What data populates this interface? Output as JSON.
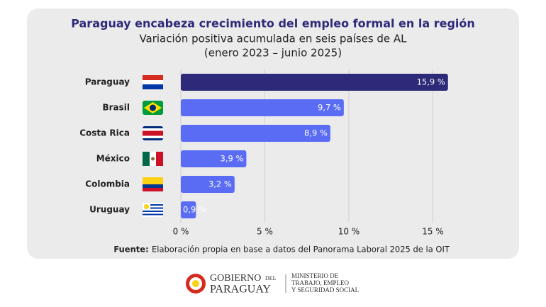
{
  "chart_data": {
    "type": "bar",
    "orientation": "horizontal",
    "title": "Paraguay encabeza crecimiento del empleo formal en la región",
    "subtitle": [
      "Variación positiva acumulada en seis países de AL",
      "(enero 2023 – junio 2025)"
    ],
    "categories": [
      "Paraguay",
      "Brasil",
      "Costa Rica",
      "México",
      "Colombia",
      "Uruguay"
    ],
    "values": [
      15.9,
      9.7,
      8.9,
      3.9,
      3.2,
      0.9
    ],
    "value_labels": [
      "15,9 %",
      "9,7 %",
      "8,9 %",
      "3,9 %",
      "3,2 %",
      "0,9 %"
    ],
    "colors": [
      "#2e2a7a",
      "#5a6cf4",
      "#5a6cf4",
      "#5a6cf4",
      "#5a6cf4",
      "#5a6cf4"
    ],
    "xlim": [
      0,
      16.5
    ],
    "xticks": [
      {
        "value": 0,
        "label": "0 %"
      },
      {
        "value": 5,
        "label": "5 %"
      },
      {
        "value": 10,
        "label": "10 %"
      },
      {
        "value": 15,
        "label": "15 %"
      }
    ],
    "grid": true,
    "source": {
      "label": "Fuente:",
      "text": "Elaboración propia en base a datos del Panorama Laboral 2025 de la OIT"
    }
  },
  "footer": {
    "gobierno": "GOBIERNO",
    "del": "DEL",
    "paraguay": "PARAGUAY",
    "ministry": [
      "MINISTERIO DE",
      "TRABAJO, EMPLEO",
      "Y SEGURIDAD SOCIAL"
    ]
  }
}
